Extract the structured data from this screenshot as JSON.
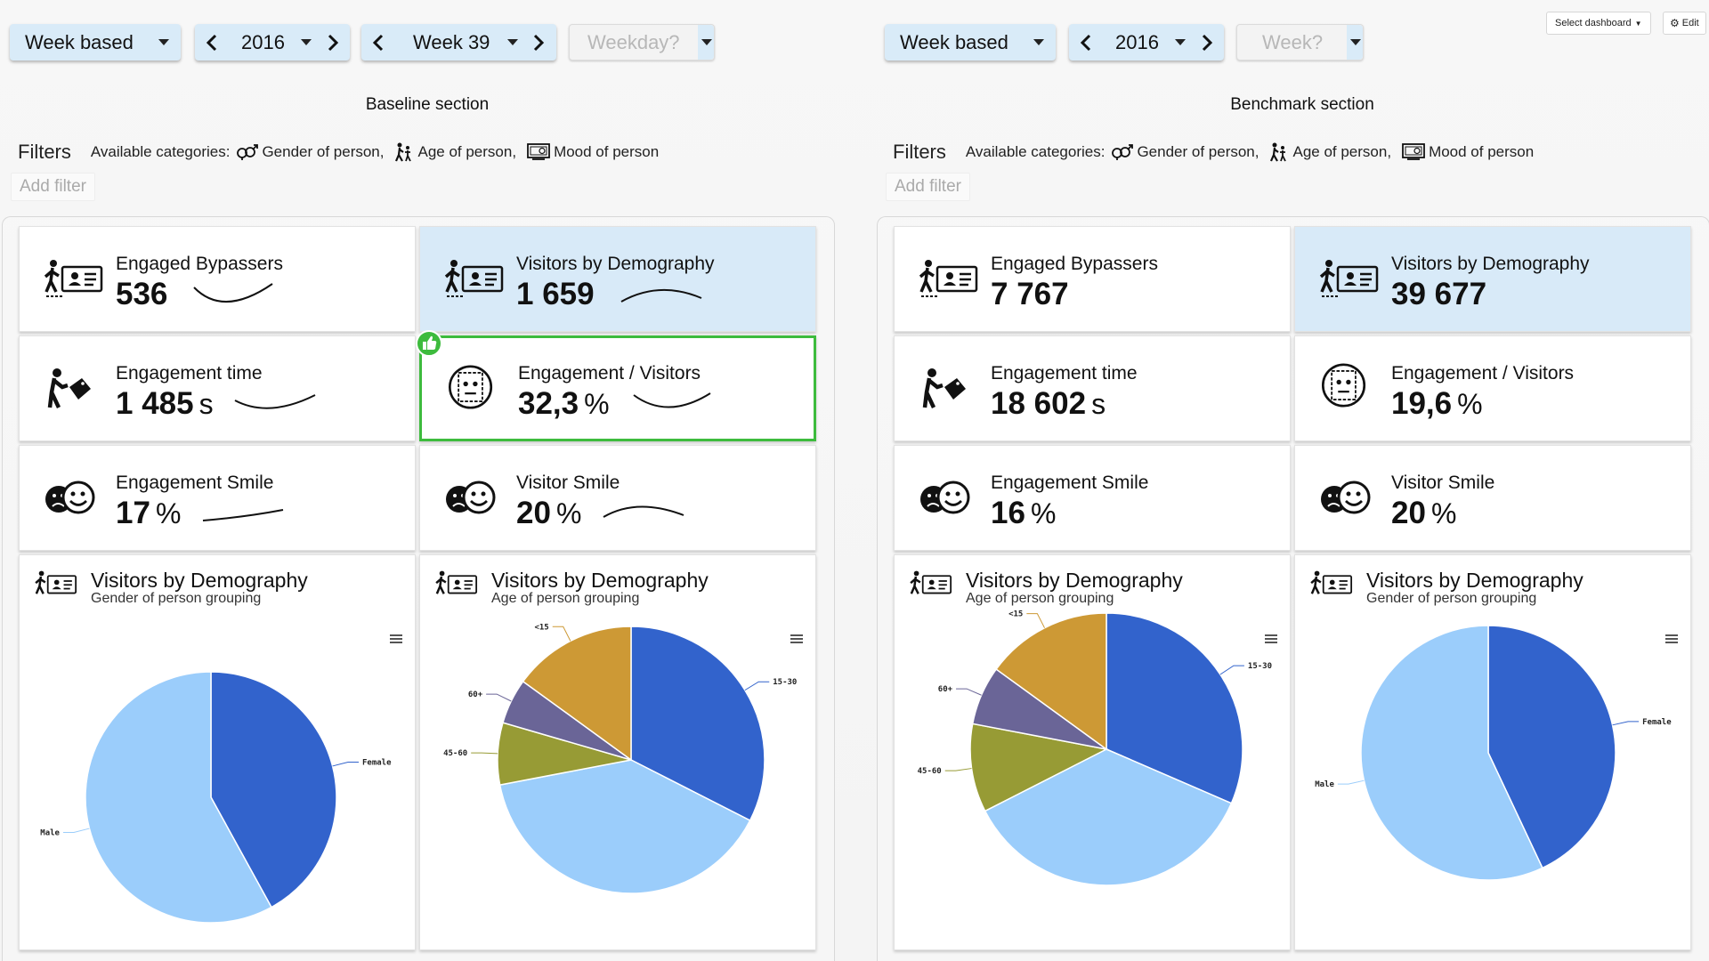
{
  "baseline": {
    "mode": "Week based",
    "year": "2016",
    "week": "Week 39",
    "weekday_placeholder": "Weekday?",
    "section_title": "Baseline section",
    "filters_title": "Filters",
    "available_label": "Available categories:",
    "categories": [
      "Gender of person,",
      "Age of person,",
      "Mood of person"
    ],
    "add_filter": "Add filter",
    "kpis": [
      {
        "title": "Engaged Bypassers",
        "value": "536",
        "unit": "",
        "icon": "id-card-person-icon",
        "trend": "valley"
      },
      {
        "title": "Visitors by Demography",
        "value": "1 659",
        "unit": "",
        "icon": "id-card-person-icon",
        "trend": "hill"
      },
      {
        "title": "Engagement time",
        "value": "1 485",
        "unit": "s",
        "icon": "price-tag-person-icon",
        "trend": "dip"
      },
      {
        "title": "Engagement / Visitors",
        "value": "32,3",
        "unit": "%",
        "icon": "face-scan-icon",
        "trend": "dip",
        "badge": "thumbs-up-icon"
      },
      {
        "title": "Engagement Smile",
        "value": "17",
        "unit": "%",
        "icon": "smiley-faces-icon",
        "trend": "rise"
      },
      {
        "title": "Visitor Smile",
        "value": "20",
        "unit": "%",
        "icon": "smiley-faces-icon",
        "trend": "hill"
      }
    ],
    "pies": [
      {
        "title": "Visitors by Demography",
        "subtitle": "Gender of person grouping",
        "labels": [
          "Female",
          "Male"
        ]
      },
      {
        "title": "Visitors by Demography",
        "subtitle": "Age of person grouping",
        "labels": [
          "15-30",
          "45-60",
          "60+",
          "<15"
        ]
      }
    ]
  },
  "benchmark": {
    "mode": "Week based",
    "year": "2016",
    "week_placeholder": "Week?",
    "section_title": "Benchmark section",
    "filters_title": "Filters",
    "available_label": "Available categories:",
    "categories": [
      "Gender of person,",
      "Age of person,",
      "Mood of person"
    ],
    "add_filter": "Add filter",
    "kpis": [
      {
        "title": "Engaged Bypassers",
        "value": "7 767",
        "unit": "",
        "icon": "id-card-person-icon"
      },
      {
        "title": "Visitors by Demography",
        "value": "39 677",
        "unit": "",
        "icon": "id-card-person-icon"
      },
      {
        "title": "Engagement time",
        "value": "18 602",
        "unit": "s",
        "icon": "price-tag-person-icon"
      },
      {
        "title": "Engagement / Visitors",
        "value": "19,6",
        "unit": "%",
        "icon": "face-scan-icon"
      },
      {
        "title": "Engagement Smile",
        "value": "16",
        "unit": "%",
        "icon": "smiley-faces-icon"
      },
      {
        "title": "Visitor Smile",
        "value": "20",
        "unit": "%",
        "icon": "smiley-faces-icon"
      }
    ],
    "pies": [
      {
        "title": "Visitors by Demography",
        "subtitle": "Age of person grouping",
        "labels": [
          "15-30",
          "45-60",
          "60+",
          "<15"
        ]
      },
      {
        "title": "Visitors by Demography",
        "subtitle": "Gender of person grouping",
        "labels": [
          "Female",
          "Male"
        ]
      }
    ]
  },
  "toolbar": {
    "select_dashboard": "Select dashboard",
    "edit": "Edit"
  },
  "colors": {
    "accent_blue": "#d9ebf8",
    "positive_green": "#3dbb3d",
    "slice_dark_blue": "#3263cc",
    "slice_light_blue": "#9bcdfb",
    "slice_olive": "#979b35",
    "slice_purple": "#6a6597",
    "slice_gold": "#cd9935"
  },
  "chart_data": [
    {
      "type": "pie",
      "title": "Visitors by Demography",
      "subtitle": "Gender of person grouping",
      "section": "Baseline",
      "labels": [
        "Female",
        "Male"
      ],
      "values": [
        42,
        58
      ]
    },
    {
      "type": "pie",
      "title": "Visitors by Demography",
      "subtitle": "Age of person grouping",
      "section": "Baseline",
      "labels": [
        "15-30",
        "(light blue)",
        "45-60",
        "60+",
        "<15"
      ],
      "values": [
        32.5,
        39.5,
        7.5,
        5.5,
        15
      ]
    },
    {
      "type": "pie",
      "title": "Visitors by Demography",
      "subtitle": "Age of person grouping",
      "section": "Benchmark",
      "labels": [
        "15-30",
        "(light blue)",
        "45-60",
        "60+",
        "<15"
      ],
      "values": [
        31.5,
        36,
        10.5,
        7,
        15
      ]
    },
    {
      "type": "pie",
      "title": "Visitors by Demography",
      "subtitle": "Gender of person grouping",
      "section": "Benchmark",
      "labels": [
        "Female",
        "Male"
      ],
      "values": [
        43,
        57
      ]
    }
  ]
}
